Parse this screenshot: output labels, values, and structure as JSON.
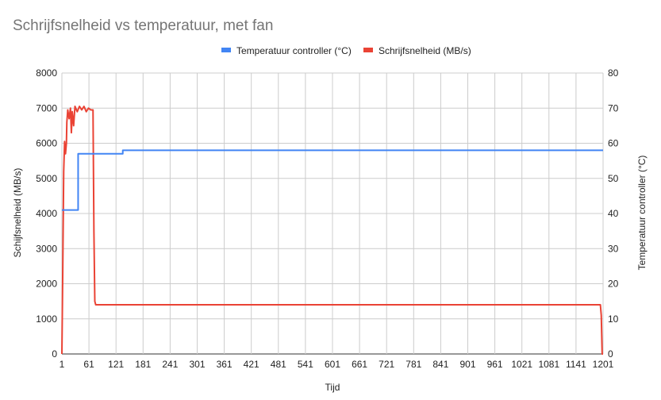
{
  "chart_data": {
    "type": "line",
    "title": "Schrijfsnelheid vs temperatuur, met fan",
    "xlabel": "Tijd",
    "ylabel_left": "Schijfsnelheid (MB/s)",
    "ylabel_right": "Temperatuur controller (°C)",
    "x_ticks": [
      "1",
      "61",
      "121",
      "181",
      "241",
      "301",
      "361",
      "421",
      "481",
      "541",
      "601",
      "661",
      "721",
      "781",
      "841",
      "901",
      "961",
      "1021",
      "1081",
      "1141",
      "1201"
    ],
    "xlim": [
      1,
      1201
    ],
    "ylim_left": [
      0,
      8000
    ],
    "ylim_right": [
      0,
      80
    ],
    "y_ticks_left": [
      "0",
      "1000",
      "2000",
      "3000",
      "4000",
      "5000",
      "6000",
      "7000",
      "8000"
    ],
    "y_ticks_right": [
      "0",
      "10",
      "20",
      "30",
      "40",
      "50",
      "60",
      "70",
      "80"
    ],
    "grid": true,
    "legend_position": "top",
    "series": [
      {
        "name": "Temperatuur controller (°C)",
        "axis": "right",
        "color": "#4285f4",
        "points": [
          [
            1,
            41
          ],
          [
            37,
            41
          ],
          [
            37,
            57
          ],
          [
            136,
            57
          ],
          [
            136,
            58
          ],
          [
            1201,
            58
          ]
        ]
      },
      {
        "name": "Schrijfsnelheid (MB/s)",
        "axis": "left",
        "color": "#ea4335",
        "points": [
          [
            1,
            0
          ],
          [
            3,
            2500
          ],
          [
            5,
            5200
          ],
          [
            7,
            6050
          ],
          [
            9,
            5700
          ],
          [
            11,
            6000
          ],
          [
            12,
            6600
          ],
          [
            14,
            6950
          ],
          [
            17,
            6700
          ],
          [
            20,
            7000
          ],
          [
            22,
            6300
          ],
          [
            24,
            6900
          ],
          [
            27,
            6500
          ],
          [
            30,
            7050
          ],
          [
            35,
            6900
          ],
          [
            40,
            7050
          ],
          [
            45,
            6950
          ],
          [
            50,
            7050
          ],
          [
            55,
            6900
          ],
          [
            60,
            7000
          ],
          [
            65,
            6950
          ],
          [
            70,
            6950
          ],
          [
            72,
            3500
          ],
          [
            74,
            1500
          ],
          [
            76,
            1400
          ],
          [
            1195,
            1400
          ],
          [
            1197,
            1100
          ],
          [
            1199,
            0
          ],
          [
            1201,
            0
          ]
        ]
      }
    ]
  }
}
